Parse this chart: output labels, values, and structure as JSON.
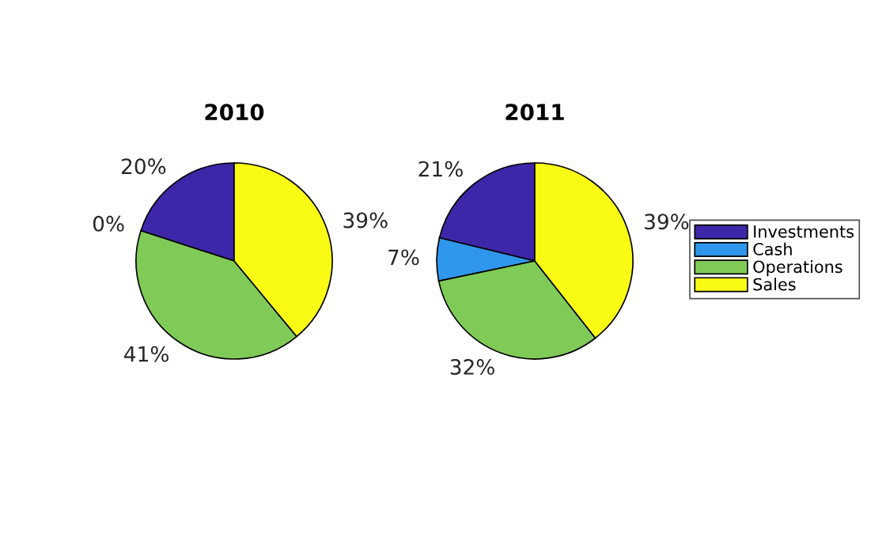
{
  "chart_data": [
    {
      "type": "pie",
      "title": "2010",
      "categories": [
        "Investments",
        "Cash",
        "Operations",
        "Sales"
      ],
      "values": [
        20,
        0,
        41,
        39
      ],
      "value_labels": [
        "20%",
        "0%",
        "41%",
        "39%"
      ],
      "colors": [
        "#3e26a8",
        "#2e97ec",
        "#80cb58",
        "#f9fb15"
      ],
      "legend": "right"
    },
    {
      "type": "pie",
      "title": "2011",
      "categories": [
        null,
        null,
        null,
        null
      ],
      "values": [
        21,
        7,
        32,
        39
      ],
      "value_labels": [
        "21%",
        "7%",
        "32%",
        "39%"
      ],
      "colors": [
        "#3e26a8",
        "#2e97ec",
        "#80cb58",
        "#f9fb15"
      ]
    }
  ]
}
